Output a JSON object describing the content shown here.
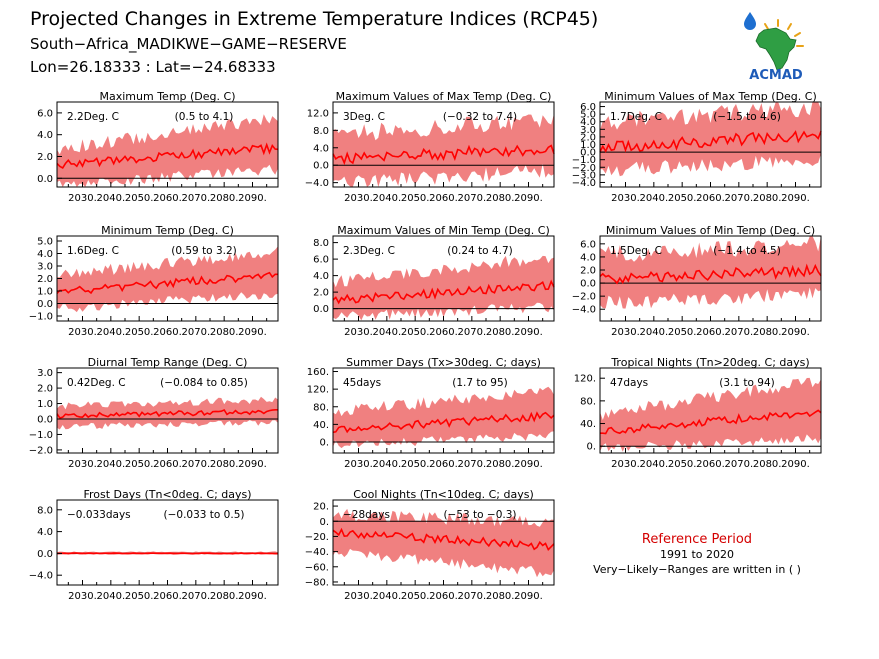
{
  "header": {
    "title": "Projected Changes in Extreme Temperature Indices (RCP45)",
    "location": "South−Africa_MADIKWE−GAME−RESERVE",
    "coords": "Lon=26.18333 : Lat=−24.68333",
    "logo_text": "ACMAD"
  },
  "reference": {
    "title": "Reference Period",
    "years": "1991 to 2020",
    "note": "Very−Likely−Ranges are written in ( )"
  },
  "colors": {
    "band": "#f08080",
    "line": "#ff0000",
    "zero": "#000000",
    "title_ref": "#d40000"
  },
  "x_tick_labels": [
    "2030.",
    "2040.",
    "2050.",
    "2060.",
    "2070.",
    "2080.",
    "2090."
  ],
  "chart_data": [
    {
      "type": "area",
      "title": "Maximum Temp (Deg. C)",
      "value": "2.2Deg. C",
      "range": "(0.5 to 4.1)",
      "x": [
        2021,
        2099
      ],
      "ylim": [
        -0.8,
        7.0
      ],
      "y_ticks": [
        "0.0",
        "2.0",
        "4.0",
        "6.0"
      ],
      "y_tick_values": [
        0,
        2,
        4,
        6
      ],
      "median_start": 1.2,
      "median_end": 2.8,
      "band_low_start": -0.1,
      "band_low_end": 1.3,
      "band_high_start": 2.1,
      "band_high_end": 4.9
    },
    {
      "type": "area",
      "title": "Maximum Values of Max Temp (Deg. C)",
      "value": "3Deg. C",
      "range": "(−0.32 to 7.4)",
      "x": [
        2021,
        2099
      ],
      "ylim": [
        -5.0,
        14.5
      ],
      "y_ticks": [
        "−4.0",
        "0.0",
        "4.0",
        "8.0",
        "12.0"
      ],
      "y_tick_values": [
        -4,
        0,
        4,
        8,
        12
      ],
      "median_start": 1.5,
      "median_end": 3.8,
      "band_low_start": -2.5,
      "band_low_end": 0.5,
      "band_high_start": 5.0,
      "band_high_end": 8.5
    },
    {
      "type": "area",
      "title": "Minimum Values of Max Temp (Deg. C)",
      "value": "1.7Deg. C",
      "range": "(−1.5 to 4.6)",
      "x": [
        2021,
        2099
      ],
      "ylim": [
        -4.6,
        6.6
      ],
      "y_ticks": [
        "−4.0",
        "−3.0",
        "−2.0",
        "−1.0",
        "0.0",
        "1.0",
        "2.0",
        "3.0",
        "4.0",
        "5.0",
        "6.0"
      ],
      "y_tick_values": [
        -4,
        -3,
        -2,
        -1,
        0,
        1,
        2,
        3,
        4,
        5,
        6
      ],
      "median_start": 0.6,
      "median_end": 2.3,
      "band_low_start": -1.5,
      "band_low_end": 0.0,
      "band_high_start": 2.8,
      "band_high_end": 4.8
    },
    {
      "type": "area",
      "title": "Minimum Temp (Deg. C)",
      "value": "1.6Deg. C",
      "range": "(0.59 to 3.2)",
      "x": [
        2021,
        2099
      ],
      "ylim": [
        -1.4,
        5.4
      ],
      "y_ticks": [
        "−1.0",
        "0.0",
        "1.0",
        "2.0",
        "3.0",
        "4.0",
        "5.0"
      ],
      "y_tick_values": [
        -1,
        0,
        1,
        2,
        3,
        4,
        5
      ],
      "median_start": 0.9,
      "median_end": 2.3,
      "band_low_start": 0.0,
      "band_low_end": 1.2,
      "band_high_start": 1.8,
      "band_high_end": 3.7
    },
    {
      "type": "area",
      "title": "Maximum Values of Min Temp (Deg. C)",
      "value": "2.3Deg. C",
      "range": "(0.24 to 4.7)",
      "x": [
        2021,
        2099
      ],
      "ylim": [
        -1.5,
        8.8
      ],
      "y_ticks": [
        "0.0",
        "2.0",
        "4.0",
        "6.0",
        "8.0"
      ],
      "y_tick_values": [
        0,
        2,
        4,
        6,
        8
      ],
      "median_start": 1.0,
      "median_end": 2.8,
      "band_low_start": -0.4,
      "band_low_end": 0.9,
      "band_high_start": 2.5,
      "band_high_end": 5.5
    },
    {
      "type": "area",
      "title": "Minimum Values of Min Temp (Deg. C)",
      "value": "1.5Deg. C",
      "range": "(−1.4 to 4.5)",
      "x": [
        2021,
        2099
      ],
      "ylim": [
        -5.8,
        7.2
      ],
      "y_ticks": [
        "−4.0",
        "−2.0",
        "0.0",
        "2.0",
        "4.0",
        "6.0"
      ],
      "y_tick_values": [
        -4,
        -2,
        0,
        2,
        4,
        6
      ],
      "median_start": 0.6,
      "median_end": 1.9,
      "band_low_start": -2.0,
      "band_low_end": -0.5,
      "band_high_start": 3.0,
      "band_high_end": 4.6
    },
    {
      "type": "area",
      "title": "Diurnal Temp Range (Deg. C)",
      "value": "0.42Deg. C",
      "range": "(−0.084 to 0.85)",
      "x": [
        2021,
        2099
      ],
      "ylim": [
        -2.2,
        3.3
      ],
      "y_ticks": [
        "−2.0",
        "−1.0",
        "0.0",
        "1.0",
        "2.0",
        "3.0"
      ],
      "y_tick_values": [
        -2,
        -1,
        0,
        1,
        2,
        3
      ],
      "median_start": 0.2,
      "median_end": 0.5,
      "band_low_start": -0.3,
      "band_low_end": 0.0,
      "band_high_start": 0.6,
      "band_high_end": 1.0
    },
    {
      "type": "area",
      "title": "Summer Days (Tx>30deg. C; days)",
      "value": "45days",
      "range": "(1.7 to 95)",
      "x": [
        2021,
        2099
      ],
      "ylim": [
        -25,
        168
      ],
      "y_ticks": [
        "0.",
        "40.",
        "80.",
        "120.",
        "160."
      ],
      "y_tick_values": [
        0,
        40,
        80,
        120,
        160
      ],
      "median_start": 28,
      "median_end": 60,
      "band_low_start": 5,
      "band_low_end": 25,
      "band_high_start": 55,
      "band_high_end": 105
    },
    {
      "type": "area",
      "title": "Tropical Nights (Tn>20deg. C; days)",
      "value": "47days",
      "range": "(3.1 to 94)",
      "x": [
        2021,
        2099
      ],
      "ylim": [
        -12,
        138
      ],
      "y_ticks": [
        "0.",
        "40.",
        "80.",
        "120."
      ],
      "y_tick_values": [
        0,
        40,
        80,
        120
      ],
      "median_start": 25,
      "median_end": 62,
      "band_low_start": 5,
      "band_low_end": 22,
      "band_high_start": 45,
      "band_high_end": 105
    },
    {
      "type": "area",
      "title": "Frost Days (Tn<0deg. C; days)",
      "value": "−0.033days",
      "range": "(−0.033 to 0.5)",
      "x": [
        2021,
        2099
      ],
      "ylim": [
        -5.8,
        9.8
      ],
      "y_ticks": [
        "−4.0",
        "0.0",
        "4.0",
        "8.0"
      ],
      "y_tick_values": [
        -4,
        0,
        4,
        8
      ],
      "median_start": 0.0,
      "median_end": 0.0,
      "band_low_start": -0.1,
      "band_low_end": -0.1,
      "band_high_start": 0.2,
      "band_high_end": 0.2
    },
    {
      "type": "area",
      "title": "Cool Nights (Tn<10deg. C; days)",
      "value": "−28days",
      "range": "(−53 to −0.3)",
      "x": [
        2021,
        2099
      ],
      "ylim": [
        -84,
        28
      ],
      "y_ticks": [
        "−80.",
        "−60.",
        "−40.",
        "−20.",
        "0.",
        "20."
      ],
      "y_tick_values": [
        -80,
        -60,
        -40,
        -20,
        0,
        20
      ],
      "median_start": -15,
      "median_end": -33,
      "band_low_start": -32,
      "band_low_end": -62,
      "band_high_start": 0,
      "band_high_end": -10
    }
  ]
}
